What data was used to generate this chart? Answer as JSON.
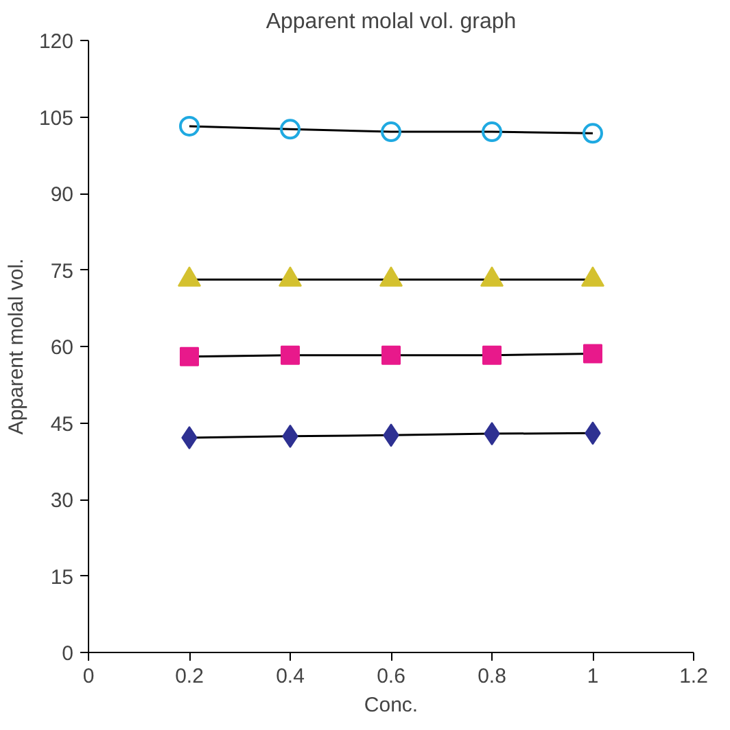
{
  "chart_data": {
    "type": "line",
    "title": "Apparent molal vol. graph",
    "xlabel": "Conc.",
    "ylabel": "Apparent molal vol.",
    "x": [
      0.2,
      0.4,
      0.6,
      0.8,
      1.0
    ],
    "series": [
      {
        "color": "#1fa9e1",
        "marker": "circle",
        "values": [
          103.2,
          102.6,
          102.1,
          102.1,
          101.8
        ]
      },
      {
        "color": "#d4c12f",
        "marker": "triangle",
        "values": [
          73.1,
          73.1,
          73.1,
          73.1,
          73.1
        ]
      },
      {
        "color": "#e8198b",
        "marker": "square",
        "values": [
          58.0,
          58.3,
          58.3,
          58.3,
          58.6
        ]
      },
      {
        "color": "#2e3192",
        "marker": "diamond",
        "values": [
          42.1,
          42.4,
          42.6,
          42.9,
          43.0
        ]
      }
    ],
    "xlim": [
      0,
      1.2
    ],
    "xticks": [
      0,
      0.2,
      0.4,
      0.6,
      0.8,
      1,
      1.2
    ],
    "ylim": [
      0,
      120
    ],
    "yticks": [
      0,
      15,
      30,
      45,
      60,
      75,
      90,
      105,
      120
    ],
    "grid": false,
    "line_style": "solid"
  }
}
